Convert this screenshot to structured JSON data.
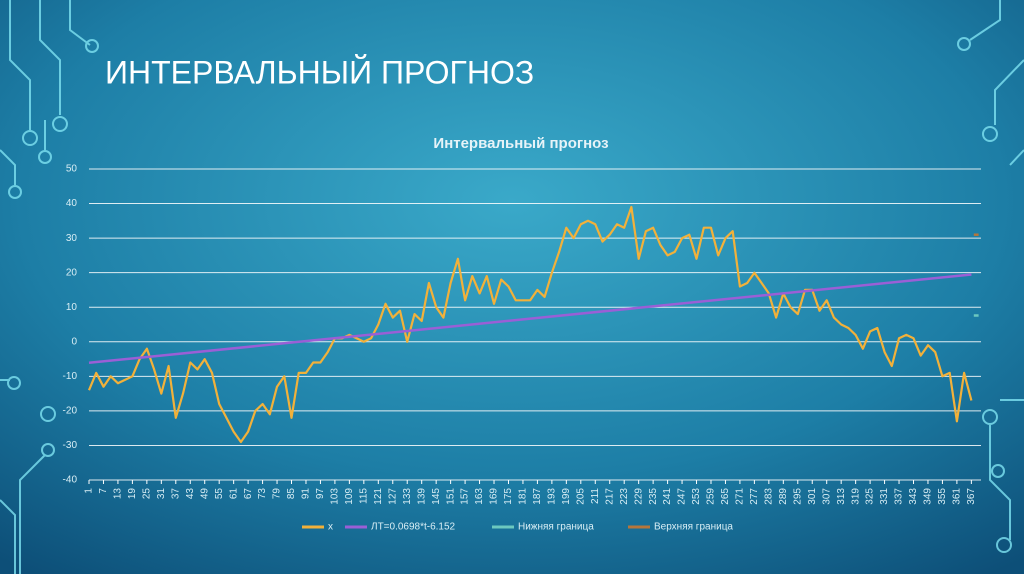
{
  "slide_title": "ИНТЕРВАЛЬНЫЙ ПРОГНОЗ",
  "chart_data": {
    "type": "line",
    "title": "Интервальный прогноз",
    "xlim": [
      1,
      371
    ],
    "ylim": [
      -40,
      50
    ],
    "yticks": [
      -40,
      -30,
      -20,
      -10,
      0,
      10,
      20,
      30,
      40,
      50
    ],
    "xticks": [
      1,
      7,
      13,
      19,
      25,
      31,
      37,
      43,
      49,
      55,
      61,
      67,
      73,
      79,
      85,
      91,
      97,
      103,
      109,
      115,
      121,
      127,
      133,
      139,
      145,
      151,
      157,
      163,
      169,
      175,
      181,
      187,
      193,
      199,
      205,
      211,
      217,
      223,
      229,
      235,
      241,
      247,
      253,
      259,
      265,
      271,
      277,
      283,
      289,
      295,
      301,
      307,
      313,
      319,
      325,
      331,
      337,
      343,
      349,
      355,
      361,
      367
    ],
    "grid": true,
    "legend": "bottom",
    "series": [
      {
        "name": "x",
        "color": "#f2b13a",
        "x": [
          1,
          4,
          7,
          10,
          13,
          16,
          19,
          22,
          25,
          28,
          31,
          34,
          37,
          40,
          43,
          46,
          49,
          52,
          55,
          58,
          61,
          64,
          67,
          70,
          73,
          76,
          79,
          82,
          85,
          88,
          91,
          94,
          97,
          100,
          103,
          106,
          109,
          112,
          115,
          118,
          121,
          124,
          127,
          130,
          133,
          136,
          139,
          142,
          145,
          148,
          151,
          154,
          157,
          160,
          163,
          166,
          169,
          172,
          175,
          178,
          181,
          184,
          187,
          190,
          193,
          196,
          199,
          202,
          205,
          208,
          211,
          214,
          217,
          220,
          223,
          226,
          229,
          232,
          235,
          238,
          241,
          244,
          247,
          250,
          253,
          256,
          259,
          262,
          265,
          268,
          271,
          274,
          277,
          280,
          283,
          286,
          289,
          292,
          295,
          298,
          301,
          304,
          307,
          310,
          313,
          316,
          319,
          322,
          325,
          328,
          331,
          334,
          337,
          340,
          343,
          346,
          349,
          352,
          355,
          358,
          361,
          364,
          367
        ],
        "values": [
          -14,
          -9,
          -13,
          -10,
          -12,
          -11,
          -10,
          -5,
          -2,
          -8,
          -15,
          -7,
          -22,
          -15,
          -6,
          -8,
          -5,
          -9,
          -18,
          -22,
          -26,
          -29,
          -26,
          -20,
          -18,
          -21,
          -13,
          -10,
          -22,
          -9,
          -9,
          -6,
          -6,
          -3,
          1,
          1,
          2,
          1,
          0,
          1,
          5,
          11,
          7,
          9,
          0,
          8,
          6,
          17,
          10,
          7,
          17,
          24,
          12,
          19,
          14,
          19,
          11,
          18,
          16,
          12,
          12,
          12,
          15,
          13,
          20,
          26,
          33,
          30,
          34,
          35,
          34,
          29,
          31,
          34,
          33,
          39,
          24,
          32,
          33,
          28,
          25,
          26,
          30,
          31,
          24,
          33,
          33,
          25,
          30,
          32,
          16,
          17,
          20,
          17,
          14,
          7,
          14,
          10,
          8,
          15,
          15,
          9,
          12,
          7,
          5,
          4,
          2,
          -2,
          3,
          4,
          -3,
          -7,
          1,
          2,
          1,
          -4,
          -1,
          -3,
          -10,
          -9,
          -23,
          -9,
          -17
        ]
      },
      {
        "name": "ЛТ=0.0698*t-6.152",
        "color": "#9a5fd6",
        "x": [
          1,
          367
        ],
        "values": [
          -6.08,
          19.47
        ]
      },
      {
        "name": "Нижняя граница",
        "color": "#6cc8bf",
        "x": [
          368,
          370
        ],
        "values": [
          7.6,
          7.6
        ]
      },
      {
        "name": "Верхняя граница",
        "color": "#b5763b",
        "x": [
          368,
          370
        ],
        "values": [
          31,
          31
        ]
      }
    ]
  }
}
